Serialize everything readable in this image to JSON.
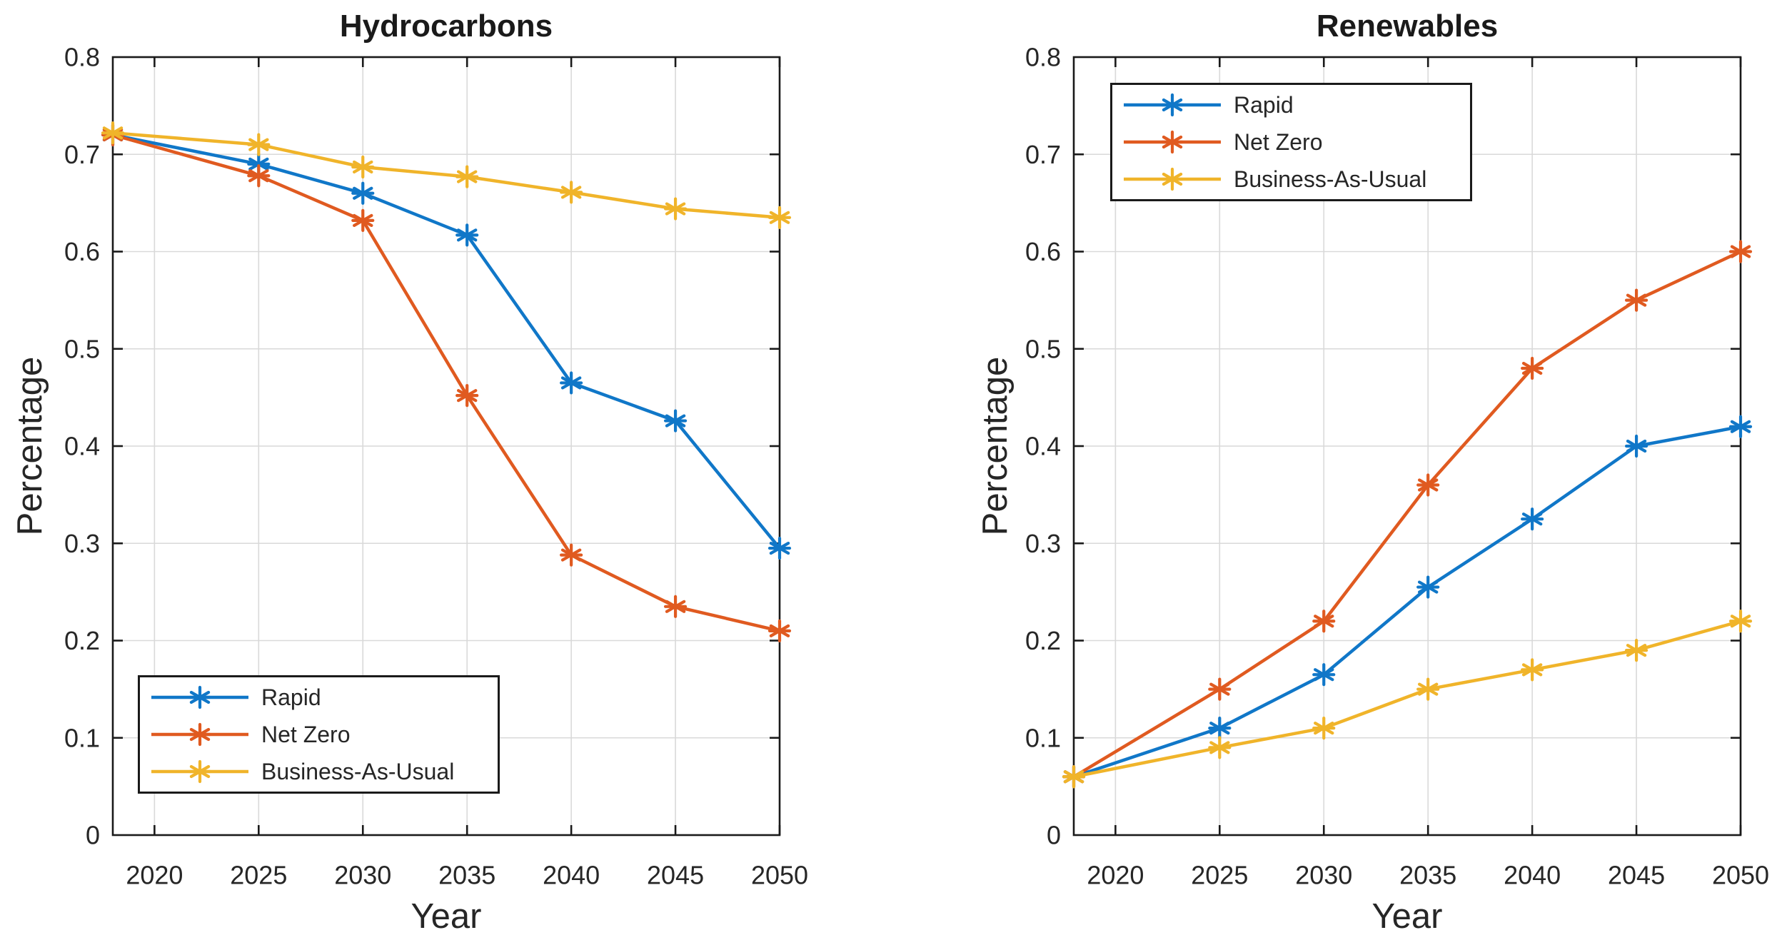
{
  "figure": {
    "background": "#ffffff",
    "text_color": "#262626",
    "axis_color": "#1a1a1a",
    "grid_color": "#d9d9d9"
  },
  "chart_data": [
    {
      "type": "line",
      "title": "Hydrocarbons",
      "xlabel": "Year",
      "ylabel": "Percentage",
      "x": [
        2018,
        2025,
        2030,
        2035,
        2040,
        2045,
        2050
      ],
      "series": [
        {
          "name": "Rapid",
          "color": "#1077C8",
          "values": [
            0.72,
            0.69,
            0.66,
            0.617,
            0.465,
            0.426,
            0.295
          ]
        },
        {
          "name": "Net Zero",
          "color": "#E05A20",
          "values": [
            0.72,
            0.678,
            0.632,
            0.452,
            0.288,
            0.235,
            0.21
          ]
        },
        {
          "name": "Business-As-Usual",
          "color": "#F0B42A",
          "values": [
            0.722,
            0.71,
            0.687,
            0.677,
            0.661,
            0.644,
            0.635
          ]
        }
      ],
      "xlim": [
        2018,
        2050
      ],
      "ylim": [
        0,
        0.8
      ],
      "x_tick_values": [
        2020,
        2025,
        2030,
        2035,
        2040,
        2045,
        2050
      ],
      "x_tick_labels": [
        "2020",
        "2025",
        "2030",
        "2035",
        "2040",
        "2045",
        "2050"
      ],
      "y_tick_values": [
        0,
        0.1,
        0.2,
        0.3,
        0.4,
        0.5,
        0.6,
        0.7,
        0.8
      ],
      "y_tick_labels": [
        "0",
        "0.1",
        "0.2",
        "0.3",
        "0.4",
        "0.5",
        "0.6",
        "0.7",
        "0.8"
      ],
      "grid": true,
      "marker": "asterisk",
      "legend_position": "southwest"
    },
    {
      "type": "line",
      "title": "Renewables",
      "xlabel": "Year",
      "ylabel": "Percentage",
      "x": [
        2018,
        2025,
        2030,
        2035,
        2040,
        2045,
        2050
      ],
      "series": [
        {
          "name": "Rapid",
          "color": "#1077C8",
          "values": [
            0.06,
            0.11,
            0.165,
            0.255,
            0.325,
            0.4,
            0.42
          ]
        },
        {
          "name": "Net Zero",
          "color": "#E05A20",
          "values": [
            0.06,
            0.15,
            0.22,
            0.36,
            0.48,
            0.55,
            0.6
          ]
        },
        {
          "name": "Business-As-Usual",
          "color": "#F0B42A",
          "values": [
            0.06,
            0.09,
            0.11,
            0.15,
            0.17,
            0.19,
            0.22
          ]
        }
      ],
      "xlim": [
        2018,
        2050
      ],
      "ylim": [
        0,
        0.8
      ],
      "x_tick_values": [
        2020,
        2025,
        2030,
        2035,
        2040,
        2045,
        2050
      ],
      "x_tick_labels": [
        "2020",
        "2025",
        "2030",
        "2035",
        "2040",
        "2045",
        "2050"
      ],
      "y_tick_values": [
        0,
        0.1,
        0.2,
        0.3,
        0.4,
        0.5,
        0.6,
        0.7,
        0.8
      ],
      "y_tick_labels": [
        "0",
        "0.1",
        "0.2",
        "0.3",
        "0.4",
        "0.5",
        "0.6",
        "0.7",
        "0.8"
      ],
      "grid": true,
      "marker": "asterisk",
      "legend_position": "northwest"
    }
  ]
}
